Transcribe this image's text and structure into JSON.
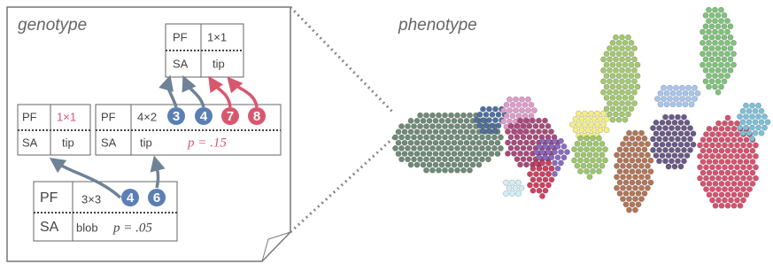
{
  "labels": {
    "genotype": "genotype",
    "phenotype": "phenotype"
  },
  "cards": [
    {
      "pf": "PF",
      "size": "1×1",
      "sa": "SA",
      "shape": "tip"
    },
    {
      "pf": "PF",
      "size": "1×1",
      "sa": "SA",
      "shape": "tip"
    },
    {
      "pf": "PF",
      "size": "4×2",
      "sa": "SA",
      "shape": "tip",
      "p": "p = .15"
    },
    {
      "pf": "PF",
      "size": "3×3",
      "sa": "SA",
      "shape": "blob",
      "p": "p = .05"
    }
  ],
  "badges": [
    "3",
    "4",
    "7",
    "8",
    "4",
    "6"
  ]
}
